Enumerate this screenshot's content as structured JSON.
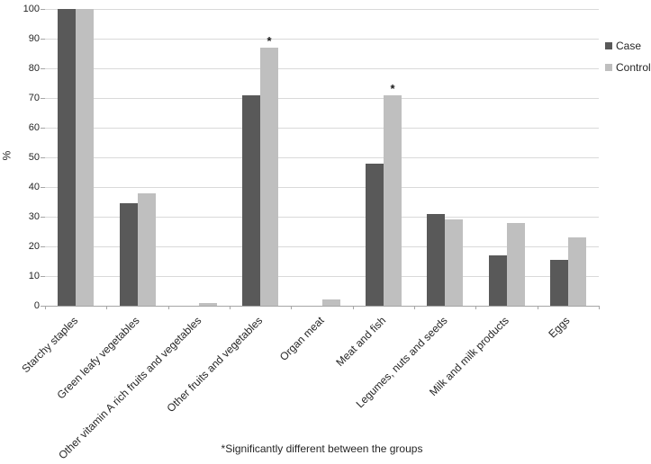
{
  "chart_data": {
    "type": "bar",
    "title": "",
    "ylabel": "%",
    "xlabel": "",
    "ylim": [
      0,
      100
    ],
    "ytick_step": 10,
    "grid": true,
    "legend_position": "right-top",
    "categories": [
      "Starchy staples",
      "Green leafy vegetables",
      "Other vitamin A rich fruits and vegetables",
      "Other fruits and vegetables",
      "Organ meat",
      "Meat and fish",
      "Legumes, nuts and seeds",
      "Milk and milk products",
      "Eggs"
    ],
    "series": [
      {
        "name": "Case",
        "color": "#595959",
        "values": [
          100,
          34.5,
          0,
          71,
          0,
          48,
          31,
          17,
          15.5
        ]
      },
      {
        "name": "Control",
        "color": "#bfbfbf",
        "values": [
          100,
          38,
          1,
          87,
          2,
          71,
          29,
          28,
          23
        ]
      }
    ],
    "markers": {
      "symbol": "*",
      "series": "Control",
      "category_indices": [
        3,
        5
      ]
    },
    "footnote": "*Significantly different between the groups"
  },
  "colors": {
    "gridline": "#d9d9d9",
    "axis": "#a6a6a6",
    "text": "#262626"
  }
}
